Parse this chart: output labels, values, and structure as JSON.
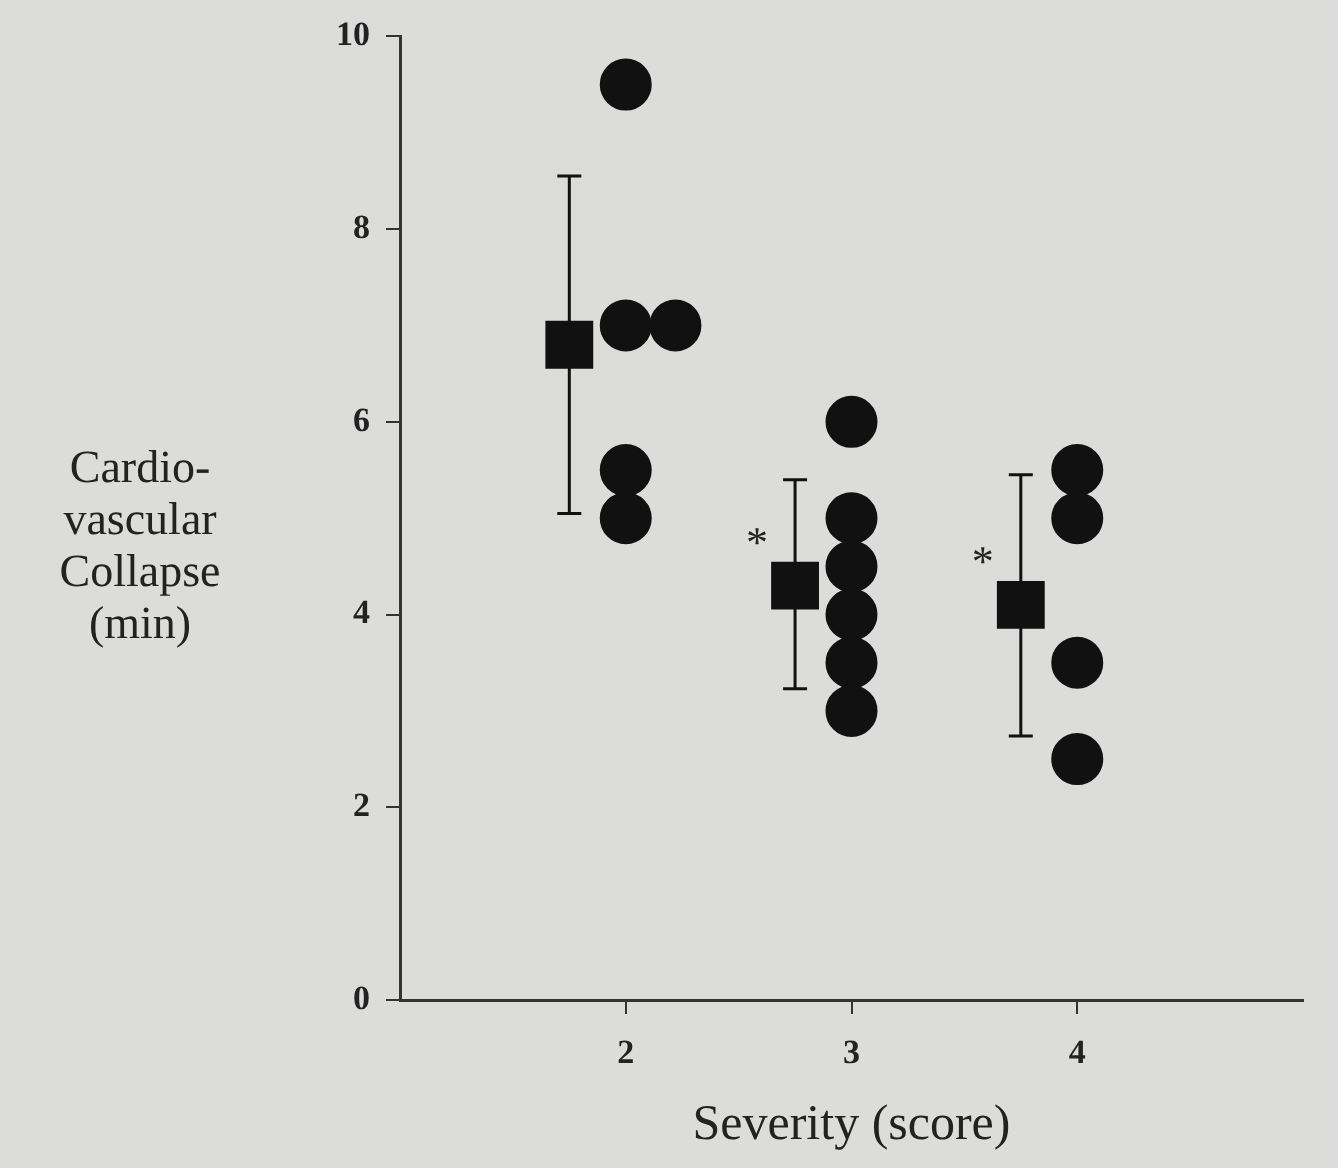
{
  "chart_data": {
    "type": "scatter",
    "xlabel": "Severity (score)",
    "ylabel": "Cardio-\nvascular\nCollapse\n(min)",
    "xlim": [
      1,
      5
    ],
    "xticks": [
      2,
      3,
      4
    ],
    "ylim": [
      0,
      10
    ],
    "yticks": [
      0,
      2,
      4,
      6,
      8,
      10
    ],
    "grid": false,
    "legend": false,
    "series": [
      {
        "color": "#111111",
        "marker": "circle",
        "x": [
          2,
          2,
          2.22,
          2,
          2,
          3,
          3,
          3,
          3,
          3,
          3,
          4,
          4,
          4,
          4
        ],
        "values": [
          9.5,
          7,
          7,
          5.5,
          5,
          6,
          5,
          4.5,
          4,
          3.5,
          3,
          5.5,
          5,
          3.5,
          2.5
        ]
      },
      {
        "color": "#111111",
        "marker": "square",
        "x": [
          1.75,
          2.75,
          3.75
        ],
        "values": [
          6.8,
          4.3,
          4.1
        ],
        "errors": [
          [
            5.05,
            8.55
          ],
          [
            3.23,
            5.4
          ],
          [
            2.74,
            5.45
          ]
        ]
      }
    ],
    "annotations": [
      {
        "text": "*",
        "x": 2.75,
        "y": 4.3
      },
      {
        "text": "*",
        "x": 3.75,
        "y": 4.1
      }
    ]
  }
}
